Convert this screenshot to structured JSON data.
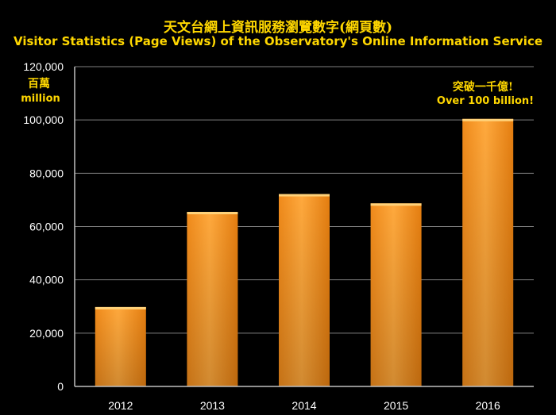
{
  "chart_data": {
    "type": "bar",
    "title": "天文台網上資訊服務瀏覽數字(網頁數)",
    "subtitle": "Visitor Statistics (Page Views) of the Observatory's  Online  Information Service",
    "ylabel_zh": "百萬",
    "ylabel_en": "million",
    "categories": [
      "2012",
      "2013",
      "2014",
      "2015",
      "2016"
    ],
    "values": [
      29800,
      65500,
      72200,
      68700,
      100400
    ],
    "ylim": [
      0,
      120000
    ],
    "yticks": [
      "0",
      "20,000",
      "40,000",
      "60,000",
      "80,000",
      "100,000",
      "120,000"
    ],
    "grid": true,
    "annotation_zh": "突破一千億!",
    "annotation_en": "Over 100 billion!",
    "colors": {
      "bar_light": "#ffb24a",
      "bar_mid": "#f7941d",
      "bar_dark": "#d46d0c",
      "text": "#ffd700",
      "axis_text": "#ffffff",
      "grid": "#7f7f7f"
    }
  }
}
